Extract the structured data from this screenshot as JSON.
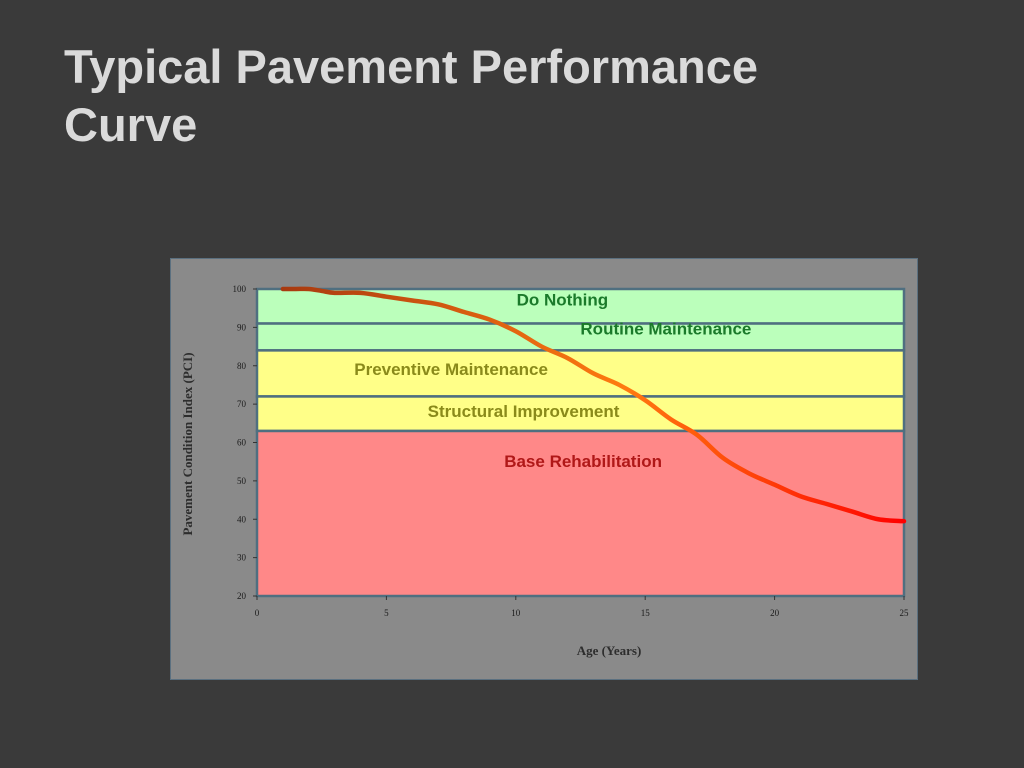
{
  "slide": {
    "title_line1": "Typical Pavement Performance",
    "title_line2": "Curve"
  },
  "colors": {
    "background": "#3a3a3a",
    "title": "#dadada",
    "frame": "#8a8a8a",
    "band_green": "#bbffbb",
    "band_yellow": "#ffff88",
    "band_red": "#ff8888",
    "label_green": "#1a7a2a",
    "label_olive": "#8a8a1a",
    "label_red": "#b01818"
  },
  "chart_data": {
    "type": "line",
    "title": "",
    "xlabel": "Age (Years)",
    "ylabel": "Pavement Condition Index (PCI)",
    "xlim": [
      0,
      25
    ],
    "ylim": [
      20,
      100
    ],
    "xticks": [
      0,
      5,
      10,
      15,
      20,
      25
    ],
    "yticks": [
      20,
      30,
      40,
      50,
      60,
      70,
      80,
      90,
      100
    ],
    "bands": [
      {
        "label": "Do Nothing",
        "y0": 91,
        "y1": 100,
        "color": "green",
        "label_x": 11.8,
        "label_y": 97.2
      },
      {
        "label": "Routine Maintenance",
        "y0": 84,
        "y1": 91,
        "color": "green",
        "label_x": 15.8,
        "label_y": 89.7
      },
      {
        "label": "Preventive Maintenance",
        "y0": 72,
        "y1": 84,
        "color": "yellow",
        "label_x": 7.5,
        "label_y": 79.2
      },
      {
        "label": "Structural Improvement",
        "y0": 63,
        "y1": 72,
        "color": "yellow",
        "label_x": 10.3,
        "label_y": 68.2
      },
      {
        "label": "Base Rehabilitation",
        "y0": 20,
        "y1": 63,
        "color": "red",
        "label_x": 12.6,
        "label_y": 55.2
      }
    ],
    "series": [
      {
        "x": [
          1,
          1.5,
          2,
          2.5,
          3,
          4,
          5,
          6,
          7,
          8,
          9,
          10,
          11,
          12,
          13,
          14,
          15,
          16,
          17,
          18,
          19,
          20,
          21,
          22,
          23,
          24,
          25
        ],
        "y": [
          100,
          100,
          100,
          99.5,
          99,
          99,
          98,
          97,
          96,
          94,
          92,
          89,
          85,
          82,
          78,
          75,
          71,
          66,
          62,
          56,
          52,
          49,
          46,
          44,
          42,
          40,
          39.5
        ]
      }
    ]
  }
}
